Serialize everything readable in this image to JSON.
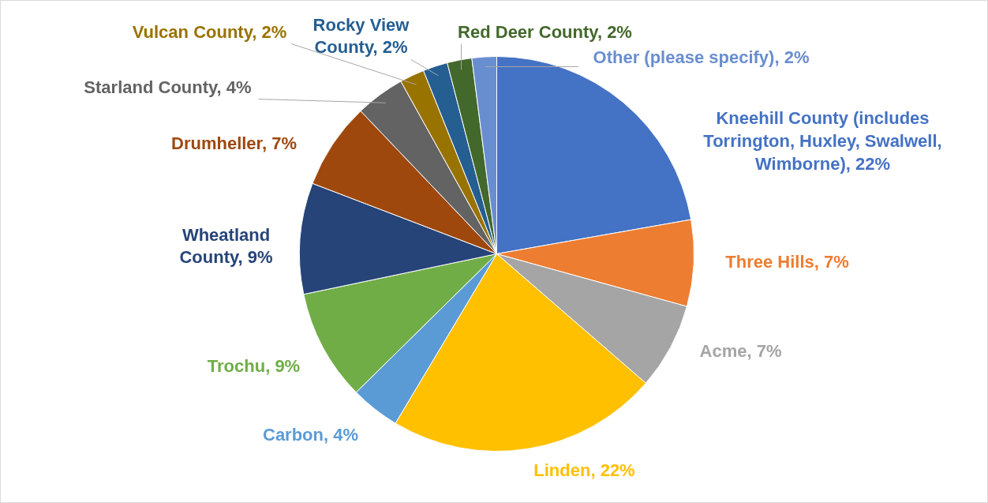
{
  "chart_data": {
    "type": "pie",
    "categories": [
      "Kneehill County (includes Torrington, Huxley, Swalwell, Wimborne)",
      "Three Hills",
      "Acme",
      "Linden",
      "Carbon",
      "Trochu",
      "Wheatland County",
      "Drumheller",
      "Starland County",
      "Vulcan County",
      "Rocky View County",
      "Red Deer County",
      "Other (please specify)"
    ],
    "values": [
      22,
      7,
      7,
      22,
      4,
      9,
      9,
      7,
      4,
      2,
      2,
      2,
      2
    ],
    "value_labels": [
      "22%",
      "7%",
      "7%",
      "22%",
      "4%",
      "9%",
      "9%",
      "7%",
      "4%",
      "2%",
      "2%",
      "2%",
      "2%"
    ],
    "colors": [
      "#4472c4",
      "#ed7d31",
      "#a5a5a5",
      "#ffc000",
      "#5b9bd5",
      "#70ad47",
      "#264478",
      "#9e480e",
      "#636363",
      "#997300",
      "#255e91",
      "#43682b",
      "#698ed0"
    ],
    "legend": false
  }
}
